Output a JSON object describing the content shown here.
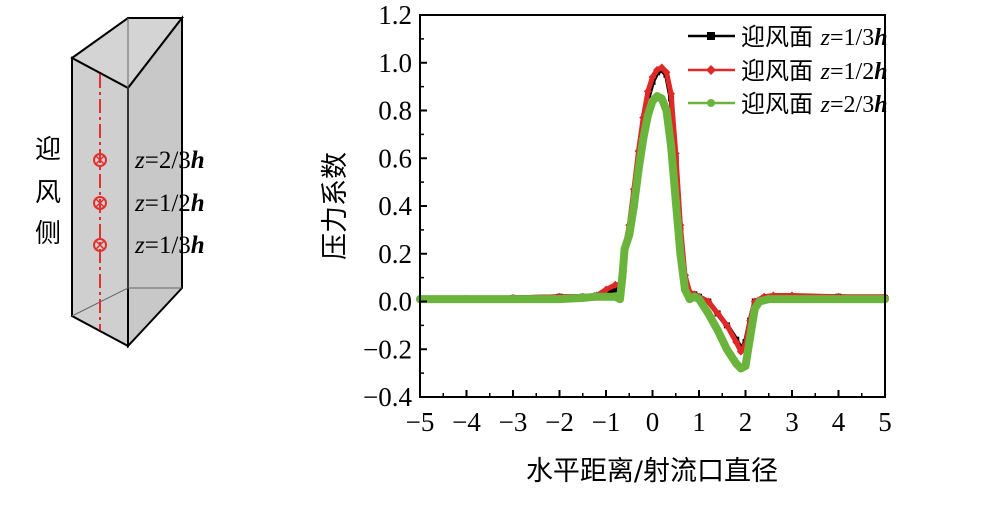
{
  "diagram": {
    "side_label_chars": [
      "迎",
      "风",
      "侧"
    ],
    "measure_points": [
      {
        "label_var": "z",
        "label_rest": "=2/3",
        "label_h": "h"
      },
      {
        "label_var": "z",
        "label_rest": "=1/2",
        "label_h": "h"
      },
      {
        "label_var": "z",
        "label_rest": "=1/3",
        "label_h": "h"
      }
    ],
    "marker_color": "#e03030"
  },
  "chart_data": {
    "type": "line",
    "title": "",
    "xlabel": "水平距离/射流口直径",
    "ylabel": "压力系数",
    "xlim": [
      -5,
      5
    ],
    "ylim": [
      -0.4,
      1.2
    ],
    "xticks": [
      -5,
      -4,
      -3,
      -2,
      -1,
      0,
      1,
      2,
      3,
      4,
      5
    ],
    "yticks": [
      -0.4,
      -0.2,
      0.0,
      0.2,
      0.4,
      0.6,
      0.8,
      1.0,
      1.2
    ],
    "ytick_labels": [
      "−0.4",
      "−0.2",
      "0.0",
      "0.2",
      "0.4",
      "0.6",
      "0.8",
      "1.0",
      "1.2"
    ],
    "xtick_labels": [
      "−5",
      "−4",
      "−3",
      "−2",
      "−1",
      "0",
      "1",
      "2",
      "3",
      "4",
      "5"
    ],
    "legend_position": "top-right",
    "series": [
      {
        "name": "迎风面 z=1/3h",
        "legend_prefix": "迎风面",
        "legend_var": "z",
        "legend_frac": "=1/3",
        "legend_h": "h",
        "color": "#000000",
        "marker": "square",
        "x": [
          -5,
          -4,
          -3,
          -2,
          -1.5,
          -1.2,
          -1,
          -0.8,
          -0.7,
          -0.6,
          -0.5,
          -0.4,
          -0.3,
          -0.2,
          -0.1,
          0,
          0.1,
          0.2,
          0.3,
          0.4,
          0.5,
          0.6,
          0.7,
          0.8,
          0.9,
          1.0,
          1.2,
          1.4,
          1.6,
          1.8,
          1.9,
          2.0,
          2.1,
          2.2,
          2.4,
          2.6,
          3,
          4,
          5
        ],
        "y": [
          0.01,
          0.01,
          0.015,
          0.02,
          0.02,
          0.025,
          0.04,
          0.05,
          0.05,
          0.2,
          0.3,
          0.45,
          0.6,
          0.74,
          0.85,
          0.92,
          0.96,
          0.97,
          0.95,
          0.85,
          0.6,
          0.3,
          0.1,
          0.03,
          0.03,
          0.02,
          0.0,
          -0.05,
          -0.1,
          -0.16,
          -0.2,
          -0.17,
          -0.08,
          0.0,
          0.015,
          0.02,
          0.02,
          0.02,
          0.015
        ]
      },
      {
        "name": "迎风面 z=1/2h",
        "legend_prefix": "迎风面",
        "legend_var": "z",
        "legend_frac": "=1/2",
        "legend_h": "h",
        "color": "#e02828",
        "marker": "diamond",
        "x": [
          -5,
          -4,
          -3,
          -2,
          -1.5,
          -1.2,
          -1,
          -0.8,
          -0.7,
          -0.6,
          -0.5,
          -0.4,
          -0.3,
          -0.2,
          -0.1,
          0,
          0.1,
          0.2,
          0.3,
          0.4,
          0.5,
          0.6,
          0.7,
          0.8,
          0.9,
          1.0,
          1.2,
          1.4,
          1.6,
          1.8,
          1.9,
          2.0,
          2.1,
          2.2,
          2.4,
          2.6,
          3,
          4,
          5
        ],
        "y": [
          0.01,
          0.01,
          0.015,
          0.02,
          0.02,
          0.025,
          0.05,
          0.07,
          0.07,
          0.22,
          0.32,
          0.47,
          0.63,
          0.77,
          0.88,
          0.94,
          0.97,
          0.98,
          0.96,
          0.87,
          0.62,
          0.32,
          0.11,
          0.04,
          0.03,
          0.02,
          0.0,
          -0.05,
          -0.1,
          -0.17,
          -0.21,
          -0.18,
          -0.08,
          0.0,
          0.02,
          0.025,
          0.025,
          0.02,
          0.02
        ]
      },
      {
        "name": "迎风面 z=2/3h",
        "legend_prefix": "迎风面",
        "legend_var": "z",
        "legend_frac": "=2/3",
        "legend_h": "h",
        "color": "#6ab43c",
        "marker": "circle",
        "x": [
          -5,
          -4,
          -3,
          -2,
          -1.5,
          -1.2,
          -1,
          -0.8,
          -0.7,
          -0.65,
          -0.6,
          -0.5,
          -0.4,
          -0.3,
          -0.2,
          -0.1,
          0,
          0.1,
          0.2,
          0.3,
          0.4,
          0.5,
          0.6,
          0.7,
          0.8,
          0.9,
          1.0,
          1.2,
          1.4,
          1.6,
          1.8,
          1.9,
          2.0,
          2.1,
          2.2,
          2.3,
          2.5,
          3,
          4,
          5
        ],
        "y": [
          0.01,
          0.01,
          0.01,
          0.01,
          0.015,
          0.02,
          0.02,
          0.02,
          0.01,
          0.1,
          0.22,
          0.28,
          0.4,
          0.55,
          0.68,
          0.78,
          0.84,
          0.86,
          0.85,
          0.8,
          0.65,
          0.42,
          0.2,
          0.05,
          0.01,
          0.02,
          0.01,
          -0.05,
          -0.12,
          -0.2,
          -0.26,
          -0.28,
          -0.27,
          -0.15,
          -0.03,
          0.0,
          0.01,
          0.01,
          0.01,
          0.01
        ]
      }
    ]
  }
}
